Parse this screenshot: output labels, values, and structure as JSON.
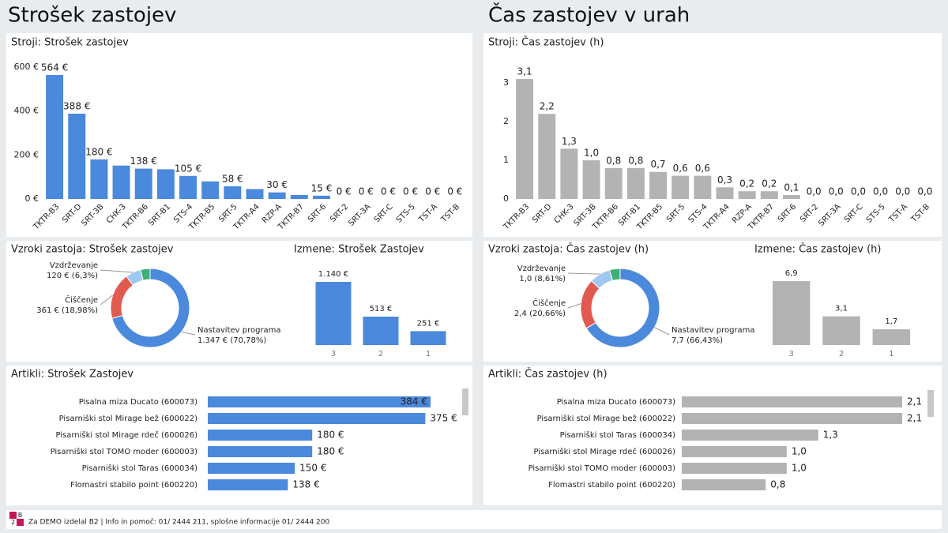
{
  "headings": [
    "Strošek zastojev",
    "Čas zastojev v urah"
  ],
  "chart_data": [
    {
      "type": "bar",
      "title": "Stroji: Strošek zastojev",
      "color": "#4a89dc",
      "categories": [
        "TKTR-B3",
        "SRT-D",
        "SRT-3B",
        "CHK-3",
        "TKTR-B6",
        "SRT-B1",
        "STS-4",
        "TKTR-B5",
        "SRT-5",
        "TKTR-A4",
        "RZP-A",
        "TKTR-B7",
        "SRT-6",
        "SRT-2",
        "SRT-3A",
        "SRT-C",
        "STS-5",
        "TST-A",
        "TST-B"
      ],
      "values": [
        564,
        388,
        180,
        152,
        138,
        135,
        105,
        80,
        58,
        45,
        30,
        18,
        15,
        0,
        0,
        0,
        0,
        0,
        0
      ],
      "value_labels": [
        "564 €",
        "388 €",
        "180 €",
        null,
        "138 €",
        null,
        "105 €",
        null,
        "58 €",
        null,
        "30 €",
        null,
        "15 €",
        "0 €",
        "0 €",
        "0 €",
        "0 €",
        "0 €",
        "0 €"
      ],
      "ylim": [
        0,
        650
      ],
      "yticks": [
        {
          "value": 0,
          "label": "0 €"
        },
        {
          "value": 200,
          "label": "200 €"
        },
        {
          "value": 400,
          "label": "400 €"
        },
        {
          "value": 600,
          "label": "600 €"
        }
      ],
      "grid": false
    },
    {
      "type": "pie",
      "title": "Vzroki zastoja: Strošek zastojev",
      "categories": [
        "Nastavitev programa",
        "Čiščenje",
        "Vzdrževanje",
        null
      ],
      "values": [
        1347,
        361,
        120,
        75
      ],
      "value_labels": [
        "1.347 € (70,78%)",
        "361 € (18,98%)",
        "120 € (6,3%)",
        null
      ],
      "colors": [
        "#4a89dc",
        "#e05a50",
        "#9fc8f0",
        "#3bb077"
      ]
    },
    {
      "type": "bar",
      "title": "Izmene: Strošek Zastojev",
      "color": "#4a89dc",
      "categories": [
        "3",
        "2",
        "1"
      ],
      "values": [
        1140,
        513,
        251
      ],
      "value_labels": [
        "1.140 €",
        "513 €",
        "251 €"
      ]
    },
    {
      "type": "barh",
      "title": "Artikli: Strošek Zastojev",
      "color": "#4a89dc",
      "categories": [
        "Pisalna miza Ducato (600073)",
        "Pisarniški stol Mirage bež (600022)",
        "Pisarniški stol Mirage rdeč (600026)",
        "Pisarniški stol TOMO moder (600003)",
        "Pisarniški stol Taras (600034)",
        "Flomastri stabilo point (600220)"
      ],
      "values": [
        384,
        375,
        180,
        180,
        150,
        138
      ],
      "value_labels": [
        "384 €",
        "375 €",
        "180 €",
        "180 €",
        "150 €",
        "138 €"
      ]
    },
    {
      "type": "bar",
      "title": "Stroji: Čas zastojev (h)",
      "color": "#b3b3b3",
      "categories": [
        "TKTR-B3",
        "SRT-D",
        "CHK-3",
        "SRT-3B",
        "TKTR-B6",
        "SRT-B1",
        "TKTR-B5",
        "SRT-5",
        "STS-4",
        "TKTR-A4",
        "RZP-A",
        "TKTR-B7",
        "SRT-6",
        "SRT-2",
        "SRT-3A",
        "SRT-C",
        "STS-5",
        "TST-A",
        "TST-B"
      ],
      "values": [
        3.1,
        2.2,
        1.3,
        1.0,
        0.8,
        0.8,
        0.7,
        0.6,
        0.6,
        0.3,
        0.2,
        0.2,
        0.1,
        0,
        0,
        0,
        0,
        0,
        0
      ],
      "value_labels": [
        "3,1",
        "2,2",
        "1,3",
        "1,0",
        "0,8",
        "0,8",
        "0,7",
        "0,6",
        "0,6",
        "0,3",
        "0,2",
        "0,2",
        "0,1",
        "0,0",
        "0,0",
        "0,0",
        "0,0",
        "0,0",
        "0,0"
      ],
      "ylim": [
        0,
        3.4
      ],
      "yticks": [
        0,
        1,
        2,
        3
      ],
      "grid": false
    },
    {
      "type": "pie",
      "title": "Vzroki zastoja: Čas zastojev (h)",
      "categories": [
        "Nastavitev programa",
        "Čiščenje",
        "Vzdrževanje",
        null
      ],
      "values": [
        7.7,
        2.4,
        1.0,
        0.5
      ],
      "value_labels": [
        "7,7 (66,43%)",
        "2,4 (20,66%)",
        "1,0 (8,61%)",
        null
      ],
      "colors": [
        "#4a89dc",
        "#e05a50",
        "#9fc8f0",
        "#3bb077"
      ]
    },
    {
      "type": "bar",
      "title": "Izmene: Čas zastojev (h)",
      "color": "#b3b3b3",
      "categories": [
        "3",
        "2",
        "1"
      ],
      "values": [
        6.9,
        3.1,
        1.7
      ],
      "value_labels": [
        "6,9",
        "3,1",
        "1,7"
      ]
    },
    {
      "type": "barh",
      "title": "Artikli: Čas zastojev (h)",
      "color": "#b3b3b3",
      "categories": [
        "Pisalna miza Ducato (600073)",
        "Pisarniški stol Mirage bež (600022)",
        "Pisarniški stol Taras (600034)",
        "Pisarniški stol Mirage rdeč (600026)",
        "Pisarniški stol TOMO moder (600003)",
        "Flomastri stabilo point (600220)"
      ],
      "values": [
        2.1,
        2.1,
        1.3,
        1.0,
        1.0,
        0.8
      ],
      "value_labels": [
        "2,1",
        "2,1",
        "1,3",
        "1,0",
        "1,0",
        "0,8"
      ]
    }
  ],
  "footer": {
    "logo": [
      "B",
      "2"
    ],
    "text": "Za DEMO izdelal B2 | Info in pomoč:  01/ 2444 211, splošne informacije 01/ 2444 200"
  }
}
